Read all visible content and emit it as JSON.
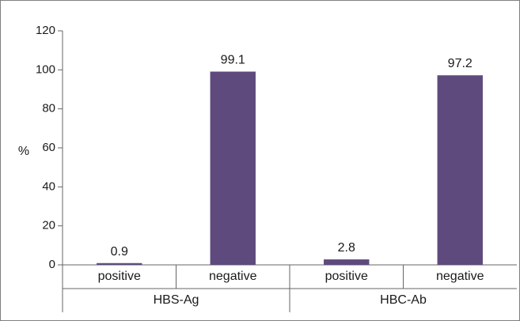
{
  "chart_data": {
    "type": "bar",
    "title": "",
    "xlabel": "",
    "ylabel": "%",
    "ylim": [
      0,
      120
    ],
    "yticks": [
      0,
      20,
      40,
      60,
      80,
      100,
      120
    ],
    "grid": false,
    "legend": "none",
    "bar_color": "#5e4a7c",
    "groups": [
      {
        "label": "HBS-Ag",
        "categories": [
          "positive",
          "negative"
        ],
        "values": [
          0.9,
          99.1
        ],
        "value_labels": [
          "0.9",
          "99.1"
        ]
      },
      {
        "label": "HBC-Ab",
        "categories": [
          "positive",
          "negative"
        ],
        "values": [
          2.8,
          97.2
        ],
        "value_labels": [
          "2.8",
          "97.2"
        ]
      }
    ]
  }
}
